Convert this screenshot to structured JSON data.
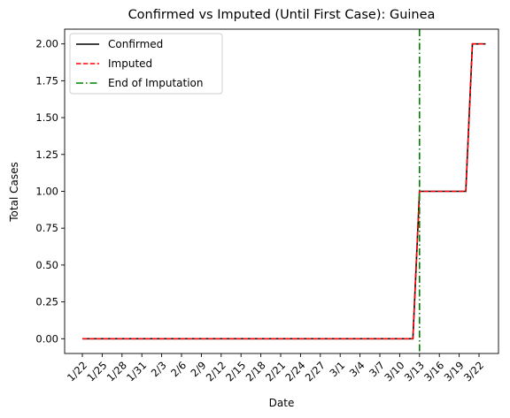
{
  "chart_data": {
    "type": "line",
    "title": "Confirmed vs Imputed (Until First Case): Guinea",
    "xlabel": "Date",
    "ylabel": "Total Cases",
    "dates": [
      "1/22",
      "1/23",
      "1/24",
      "1/25",
      "1/26",
      "1/27",
      "1/28",
      "1/29",
      "1/30",
      "1/31",
      "2/1",
      "2/2",
      "2/3",
      "2/4",
      "2/5",
      "2/6",
      "2/7",
      "2/8",
      "2/9",
      "2/10",
      "2/11",
      "2/12",
      "2/13",
      "2/14",
      "2/15",
      "2/16",
      "2/17",
      "2/18",
      "2/19",
      "2/20",
      "2/21",
      "2/22",
      "2/23",
      "2/24",
      "2/25",
      "2/26",
      "2/27",
      "2/28",
      "2/29",
      "3/1",
      "3/2",
      "3/3",
      "3/4",
      "3/5",
      "3/6",
      "3/7",
      "3/8",
      "3/9",
      "3/10",
      "3/11",
      "3/12",
      "3/13",
      "3/14",
      "3/15",
      "3/16",
      "3/17",
      "3/18",
      "3/19",
      "3/20",
      "3/21",
      "3/22",
      "3/23"
    ],
    "xticks": [
      "1/22",
      "1/25",
      "1/28",
      "1/31",
      "2/3",
      "2/6",
      "2/9",
      "2/12",
      "2/15",
      "2/18",
      "2/21",
      "2/24",
      "2/27",
      "3/1",
      "3/4",
      "3/7",
      "3/10",
      "3/13",
      "3/16",
      "3/19",
      "3/22"
    ],
    "yticks": [
      0.0,
      0.25,
      0.5,
      0.75,
      1.0,
      1.25,
      1.5,
      1.75,
      2.0
    ],
    "ytick_labels": [
      "0.00",
      "0.25",
      "0.50",
      "0.75",
      "1.00",
      "1.25",
      "1.50",
      "1.75",
      "2.00"
    ],
    "ylim": [
      -0.1,
      2.1
    ],
    "series": [
      {
        "name": "Confirmed",
        "color": "#000000",
        "style": "solid",
        "values": [
          0,
          0,
          0,
          0,
          0,
          0,
          0,
          0,
          0,
          0,
          0,
          0,
          0,
          0,
          0,
          0,
          0,
          0,
          0,
          0,
          0,
          0,
          0,
          0,
          0,
          0,
          0,
          0,
          0,
          0,
          0,
          0,
          0,
          0,
          0,
          0,
          0,
          0,
          0,
          0,
          0,
          0,
          0,
          0,
          0,
          0,
          0,
          0,
          0,
          0,
          0,
          1,
          1,
          1,
          1,
          1,
          1,
          1,
          1,
          2,
          2,
          2
        ]
      },
      {
        "name": "Imputed",
        "color": "#ff0000",
        "style": "dashed",
        "values": [
          0,
          0,
          0,
          0,
          0,
          0,
          0,
          0,
          0,
          0,
          0,
          0,
          0,
          0,
          0,
          0,
          0,
          0,
          0,
          0,
          0,
          0,
          0,
          0,
          0,
          0,
          0,
          0,
          0,
          0,
          0,
          0,
          0,
          0,
          0,
          0,
          0,
          0,
          0,
          0,
          0,
          0,
          0,
          0,
          0,
          0,
          0,
          0,
          0,
          0,
          0,
          1,
          1,
          1,
          1,
          1,
          1,
          1,
          1,
          2,
          2,
          2
        ]
      }
    ],
    "vline": {
      "name": "End of Imputation",
      "x": "3/13",
      "color": "#008000",
      "style": "dashdot"
    },
    "legend": {
      "placement": "upper-left"
    }
  }
}
